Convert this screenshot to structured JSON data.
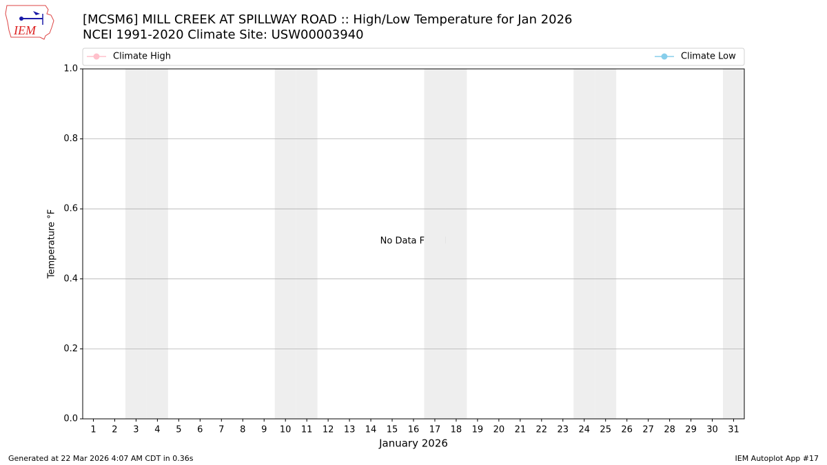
{
  "chart_data": {
    "type": "line",
    "title": "[MCSM6] MILL CREEK AT SPILLWAY ROAD :: High/Low Temperature for Jan 2026",
    "subtitle": "NCEI 1991-2020 Climate Site: USW00003940",
    "logo_text": "IEM",
    "x_label": "January 2026",
    "y_label": "Temperature °F",
    "annotation": "No Data Found",
    "footer_left": "Generated at 22 Mar 2026 4:07 AM CDT in 0.36s",
    "footer_right": "IEM Autoplot App #17",
    "x": [
      1,
      2,
      3,
      4,
      5,
      6,
      7,
      8,
      9,
      10,
      11,
      12,
      13,
      14,
      15,
      16,
      17,
      18,
      19,
      20,
      21,
      22,
      23,
      24,
      25,
      26,
      27,
      28,
      29,
      30,
      31
    ],
    "xlim": [
      0.5,
      31.5
    ],
    "xticks": [
      1,
      2,
      3,
      4,
      5,
      6,
      7,
      8,
      9,
      10,
      11,
      12,
      13,
      14,
      15,
      16,
      17,
      18,
      19,
      20,
      21,
      22,
      23,
      24,
      25,
      26,
      27,
      28,
      29,
      30,
      31
    ],
    "shaded_days": [
      3,
      4,
      10,
      11,
      17,
      18,
      24,
      25,
      31
    ],
    "shade_color": "#eeeeee",
    "ylim": [
      0,
      1
    ],
    "yticks": [
      {
        "value": 0,
        "label": "0.0"
      },
      0.2,
      0.4,
      0.6,
      0.8,
      {
        "value": 1,
        "label": "1.0"
      }
    ],
    "grid": true,
    "series": [
      {
        "name": "Climate High",
        "color": "#ffc0cb",
        "values": [
          null,
          null,
          null,
          null,
          null,
          null,
          null,
          null,
          null,
          null,
          null,
          null,
          null,
          null,
          null,
          null,
          null,
          null,
          null,
          null,
          null,
          null,
          null,
          null,
          null,
          null,
          null,
          null,
          null,
          null,
          null
        ]
      },
      {
        "name": "Climate Low",
        "color": "#87ceeb",
        "values": [
          null,
          null,
          null,
          null,
          null,
          null,
          null,
          null,
          null,
          null,
          null,
          null,
          null,
          null,
          null,
          null,
          null,
          null,
          null,
          null,
          null,
          null,
          null,
          null,
          null,
          null,
          null,
          null,
          null,
          null,
          null
        ]
      }
    ]
  }
}
